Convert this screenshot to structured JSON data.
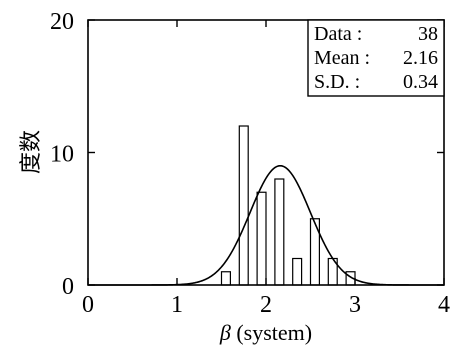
{
  "chart_data": {
    "type": "bar",
    "xlabel_symbol": "β",
    "xlabel_text": " (system)",
    "ylabel": "度数",
    "xlim": [
      0,
      4
    ],
    "ylim": [
      0,
      20
    ],
    "xticks": [
      "0",
      "1",
      "2",
      "3",
      "4"
    ],
    "yticks": [
      "0",
      "10",
      "20"
    ],
    "bin_width": 0.1,
    "bars": [
      {
        "x": 1.55,
        "value": 1
      },
      {
        "x": 1.75,
        "value": 12
      },
      {
        "x": 1.95,
        "value": 7
      },
      {
        "x": 2.15,
        "value": 8
      },
      {
        "x": 2.35,
        "value": 2
      },
      {
        "x": 2.55,
        "value": 5
      },
      {
        "x": 2.75,
        "value": 2
      },
      {
        "x": 2.95,
        "value": 1
      }
    ],
    "normal_curve": {
      "mean": 2.16,
      "sd": 0.34,
      "peak": 9.0
    },
    "stats": [
      {
        "label": "Data :",
        "value": "38"
      },
      {
        "label": "Mean :",
        "value": "2.16"
      },
      {
        "label": "S.D. :",
        "value": "0.34"
      }
    ],
    "legend_position": "top-right",
    "grid": false
  }
}
